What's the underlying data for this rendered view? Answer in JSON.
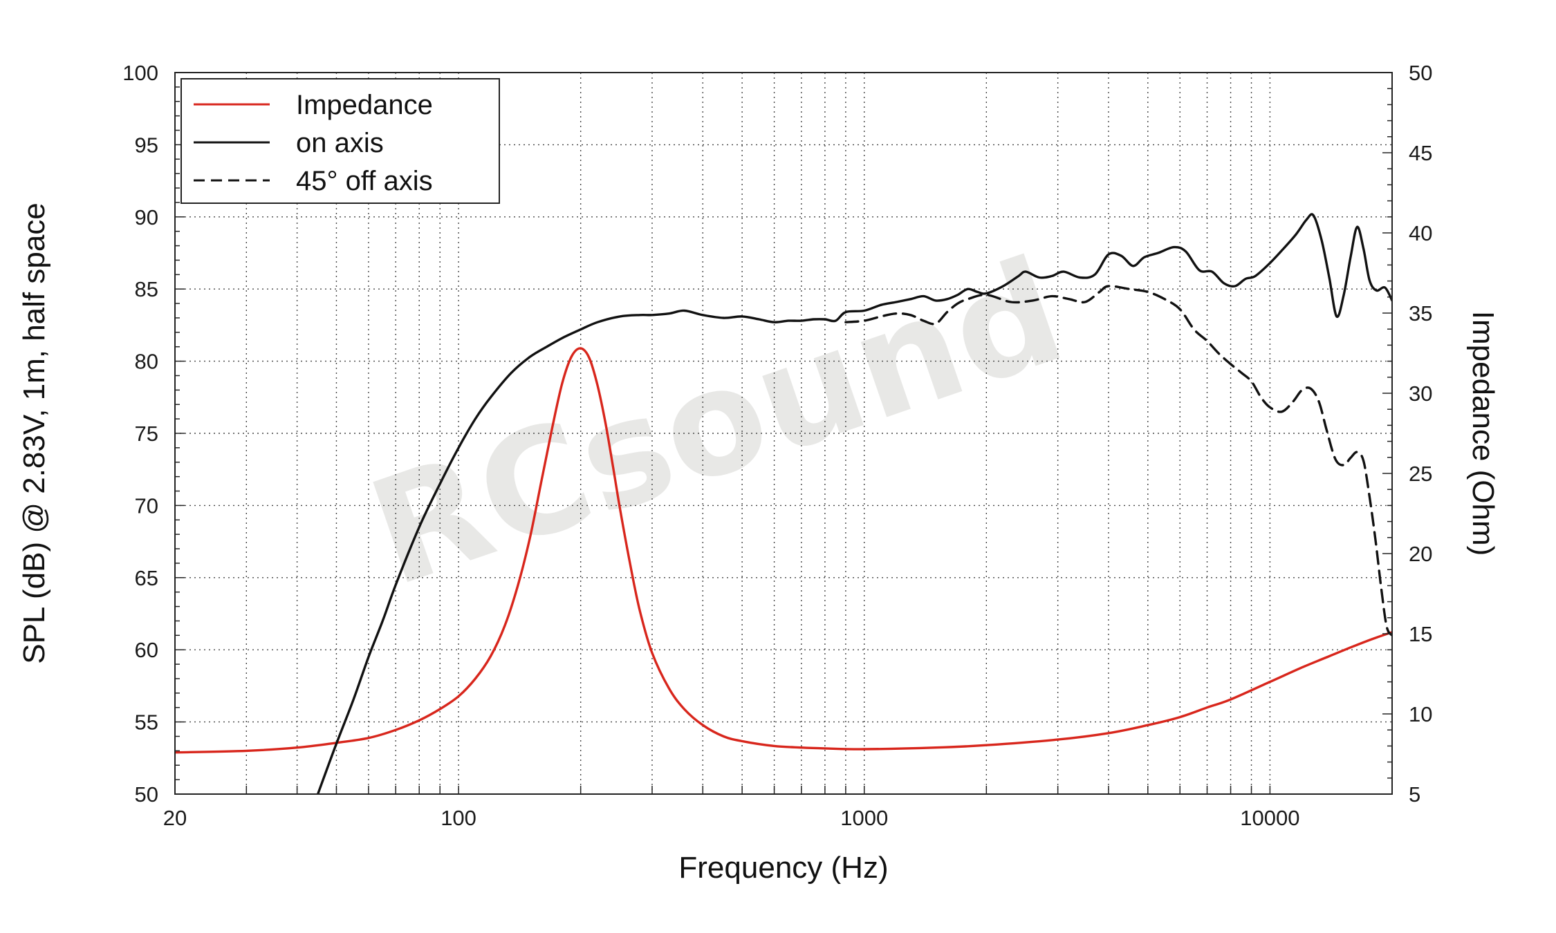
{
  "chart_data": {
    "type": "line",
    "xlabel": "Frequency (Hz)",
    "ylabel": "SPL (dB) @ 2.83V, 1m, half space",
    "y2label": "Impedance (Ohm)",
    "xscale": "log",
    "xlim": [
      20,
      20000
    ],
    "ylim": [
      50,
      100
    ],
    "y2lim": [
      5,
      50
    ],
    "grid": true,
    "legend_position": "top-left",
    "watermark": "RCsound",
    "x_tick_labels": [
      "20",
      "100",
      "1000",
      "10000"
    ],
    "y_tick_labels": [
      "50",
      "55",
      "60",
      "65",
      "70",
      "75",
      "80",
      "85",
      "90",
      "95",
      "100"
    ],
    "y2_tick_labels": [
      "5",
      "10",
      "15",
      "20",
      "25",
      "30",
      "35",
      "40",
      "45",
      "50"
    ],
    "series": [
      {
        "name": "Impedance",
        "axis": "right",
        "color": "#d8261c",
        "dash": "solid",
        "points": [
          [
            20,
            7.6
          ],
          [
            30,
            7.7
          ],
          [
            40,
            7.9
          ],
          [
            50,
            8.2
          ],
          [
            60,
            8.5
          ],
          [
            70,
            9.0
          ],
          [
            80,
            9.6
          ],
          [
            90,
            10.3
          ],
          [
            100,
            11.1
          ],
          [
            110,
            12.2
          ],
          [
            120,
            13.6
          ],
          [
            130,
            15.5
          ],
          [
            140,
            18.0
          ],
          [
            150,
            21.0
          ],
          [
            160,
            24.5
          ],
          [
            170,
            27.8
          ],
          [
            180,
            30.6
          ],
          [
            190,
            32.3
          ],
          [
            200,
            32.8
          ],
          [
            210,
            32.2
          ],
          [
            220,
            30.5
          ],
          [
            230,
            28.2
          ],
          [
            240,
            25.5
          ],
          [
            250,
            22.8
          ],
          [
            265,
            19.3
          ],
          [
            280,
            16.4
          ],
          [
            300,
            13.8
          ],
          [
            330,
            11.6
          ],
          [
            360,
            10.3
          ],
          [
            400,
            9.3
          ],
          [
            450,
            8.6
          ],
          [
            500,
            8.3
          ],
          [
            600,
            8.0
          ],
          [
            700,
            7.9
          ],
          [
            800,
            7.85
          ],
          [
            1000,
            7.8
          ],
          [
            1500,
            7.9
          ],
          [
            2000,
            8.05
          ],
          [
            3000,
            8.4
          ],
          [
            4000,
            8.8
          ],
          [
            5000,
            9.3
          ],
          [
            6000,
            9.8
          ],
          [
            7000,
            10.4
          ],
          [
            8000,
            10.9
          ],
          [
            10000,
            12.0
          ],
          [
            12000,
            12.9
          ],
          [
            14000,
            13.6
          ],
          [
            16000,
            14.2
          ],
          [
            18000,
            14.7
          ],
          [
            20000,
            15.1
          ]
        ]
      },
      {
        "name": "on axis",
        "axis": "left",
        "color": "#111111",
        "dash": "solid",
        "points": [
          [
            45,
            50
          ],
          [
            50,
            53.5
          ],
          [
            55,
            56.5
          ],
          [
            60,
            59.5
          ],
          [
            65,
            62
          ],
          [
            70,
            64.5
          ],
          [
            80,
            68.5
          ],
          [
            90,
            71.5
          ],
          [
            100,
            74
          ],
          [
            110,
            76
          ],
          [
            120,
            77.5
          ],
          [
            135,
            79.2
          ],
          [
            150,
            80.3
          ],
          [
            165,
            81
          ],
          [
            180,
            81.6
          ],
          [
            200,
            82.2
          ],
          [
            220,
            82.7
          ],
          [
            250,
            83.1
          ],
          [
            280,
            83.2
          ],
          [
            300,
            83.2
          ],
          [
            330,
            83.3
          ],
          [
            360,
            83.5
          ],
          [
            400,
            83.2
          ],
          [
            450,
            83
          ],
          [
            500,
            83.1
          ],
          [
            550,
            82.9
          ],
          [
            600,
            82.7
          ],
          [
            650,
            82.8
          ],
          [
            700,
            82.8
          ],
          [
            750,
            82.9
          ],
          [
            800,
            82.9
          ],
          [
            850,
            82.8
          ],
          [
            900,
            83.4
          ],
          [
            1000,
            83.5
          ],
          [
            1100,
            83.9
          ],
          [
            1200,
            84.1
          ],
          [
            1300,
            84.3
          ],
          [
            1400,
            84.5
          ],
          [
            1500,
            84.2
          ],
          [
            1600,
            84.3
          ],
          [
            1700,
            84.6
          ],
          [
            1800,
            85
          ],
          [
            1900,
            84.8
          ],
          [
            2000,
            84.7
          ],
          [
            2200,
            85.2
          ],
          [
            2400,
            85.9
          ],
          [
            2500,
            86.2
          ],
          [
            2700,
            85.8
          ],
          [
            2900,
            85.9
          ],
          [
            3100,
            86.2
          ],
          [
            3400,
            85.8
          ],
          [
            3700,
            86
          ],
          [
            4000,
            87.4
          ],
          [
            4300,
            87.3
          ],
          [
            4600,
            86.6
          ],
          [
            4900,
            87.2
          ],
          [
            5300,
            87.5
          ],
          [
            5800,
            87.9
          ],
          [
            6200,
            87.6
          ],
          [
            6700,
            86.3
          ],
          [
            7200,
            86.2
          ],
          [
            7700,
            85.4
          ],
          [
            8200,
            85.2
          ],
          [
            8700,
            85.7
          ],
          [
            9200,
            85.9
          ],
          [
            10000,
            86.8
          ],
          [
            10800,
            87.8
          ],
          [
            11600,
            88.8
          ],
          [
            12300,
            89.8
          ],
          [
            12800,
            90.1
          ],
          [
            13400,
            88.4
          ],
          [
            14000,
            85.8
          ],
          [
            14600,
            83.1
          ],
          [
            15200,
            84.6
          ],
          [
            15800,
            87.2
          ],
          [
            16400,
            89.3
          ],
          [
            17000,
            87.8
          ],
          [
            17600,
            85.6
          ],
          [
            18300,
            84.9
          ],
          [
            19200,
            85.1
          ],
          [
            20000,
            84.2
          ]
        ]
      },
      {
        "name": "45° off axis",
        "axis": "left",
        "color": "#111111",
        "dash": "dashed",
        "points": [
          [
            900,
            82.7
          ],
          [
            1000,
            82.8
          ],
          [
            1100,
            83.1
          ],
          [
            1200,
            83.3
          ],
          [
            1300,
            83.2
          ],
          [
            1400,
            82.8
          ],
          [
            1500,
            82.6
          ],
          [
            1600,
            83.4
          ],
          [
            1700,
            84
          ],
          [
            1800,
            84.3
          ],
          [
            2000,
            84.6
          ],
          [
            2300,
            84.1
          ],
          [
            2600,
            84.2
          ],
          [
            2900,
            84.5
          ],
          [
            3200,
            84.3
          ],
          [
            3500,
            84.1
          ],
          [
            3800,
            84.8
          ],
          [
            4000,
            85.2
          ],
          [
            4500,
            85
          ],
          [
            5000,
            84.8
          ],
          [
            5500,
            84.3
          ],
          [
            6000,
            83.6
          ],
          [
            6500,
            82.2
          ],
          [
            7000,
            81.4
          ],
          [
            7500,
            80.5
          ],
          [
            8000,
            79.8
          ],
          [
            8500,
            79.2
          ],
          [
            9000,
            78.6
          ],
          [
            9500,
            77.5
          ],
          [
            10000,
            76.8
          ],
          [
            10700,
            76.5
          ],
          [
            11400,
            77.2
          ],
          [
            12000,
            78
          ],
          [
            12600,
            78.1
          ],
          [
            13200,
            77.2
          ],
          [
            13800,
            75.2
          ],
          [
            14500,
            73.2
          ],
          [
            15200,
            72.8
          ],
          [
            15800,
            73.3
          ],
          [
            16400,
            73.7
          ],
          [
            17000,
            73.1
          ],
          [
            17600,
            70.6
          ],
          [
            18200,
            67.6
          ],
          [
            18800,
            64.3
          ],
          [
            19400,
            61.6
          ],
          [
            20000,
            61
          ]
        ]
      }
    ]
  }
}
